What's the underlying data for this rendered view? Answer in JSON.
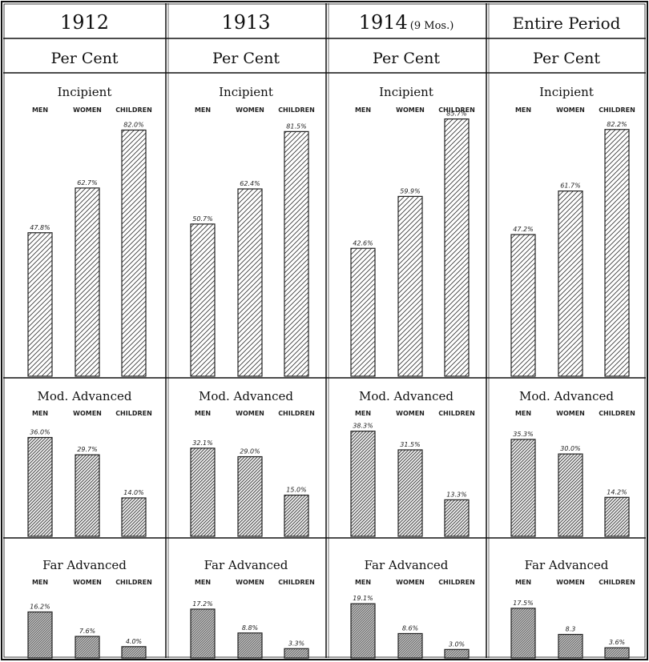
{
  "chart_data": {
    "type": "bar",
    "columns": [
      {
        "year": "1912",
        "note": "",
        "unit": "Per Cent"
      },
      {
        "year": "1913",
        "note": "",
        "unit": "Per Cent"
      },
      {
        "year": "1914",
        "note": "(9 Mos.)",
        "unit": "Per Cent"
      },
      {
        "year": "Entire Period",
        "note": "",
        "unit": "Per Cent"
      }
    ],
    "categories": [
      "MEN",
      "WOMEN",
      "CHILDREN"
    ],
    "sections": [
      {
        "name": "Incipient",
        "ylim": [
          0,
          100
        ],
        "values": [
          [
            47.8,
            62.7,
            82.0
          ],
          [
            50.7,
            62.4,
            81.5
          ],
          [
            42.6,
            59.9,
            85.7
          ],
          [
            47.2,
            61.7,
            82.2
          ]
        ],
        "labels": [
          [
            "47.8%",
            "62.7%",
            "82.0%"
          ],
          [
            "50.7%",
            "62.4%",
            "81.5%"
          ],
          [
            "42.6%",
            "59.9%",
            "85.7%"
          ],
          [
            "47.2%",
            "61.7%",
            "82.2%"
          ]
        ]
      },
      {
        "name": "Mod. Advanced",
        "ylim": [
          0,
          50
        ],
        "values": [
          [
            36.0,
            29.7,
            14.0
          ],
          [
            32.1,
            29.0,
            15.0
          ],
          [
            38.3,
            31.5,
            13.3
          ],
          [
            35.3,
            30.0,
            14.2
          ]
        ],
        "labels": [
          [
            "36.0%",
            "29.7%",
            "14.0%"
          ],
          [
            "32.1%",
            "29.0%",
            "15.0%"
          ],
          [
            "38.3%",
            "31.5%",
            "13.3%"
          ],
          [
            "35.3%",
            "30.0%",
            "14.2%"
          ]
        ]
      },
      {
        "name": "Far Advanced",
        "ylim": [
          0,
          25
        ],
        "values": [
          [
            16.2,
            7.6,
            4.0
          ],
          [
            17.2,
            8.8,
            3.3
          ],
          [
            19.1,
            8.6,
            3.0
          ],
          [
            17.5,
            8.3,
            3.6
          ]
        ],
        "labels": [
          [
            "16.2%",
            "7.6%",
            "4.0%"
          ],
          [
            "17.2%",
            "8.8%",
            "3.3%"
          ],
          [
            "19.1%",
            "8.6%",
            "3.0%"
          ],
          [
            "17.5%",
            "8.3",
            "3.6%"
          ]
        ]
      }
    ],
    "colors": {
      "incipient": "#ffffff",
      "mod_advanced": "#ececec",
      "far_advanced": "#c4c4c4",
      "line": "#222222"
    }
  }
}
